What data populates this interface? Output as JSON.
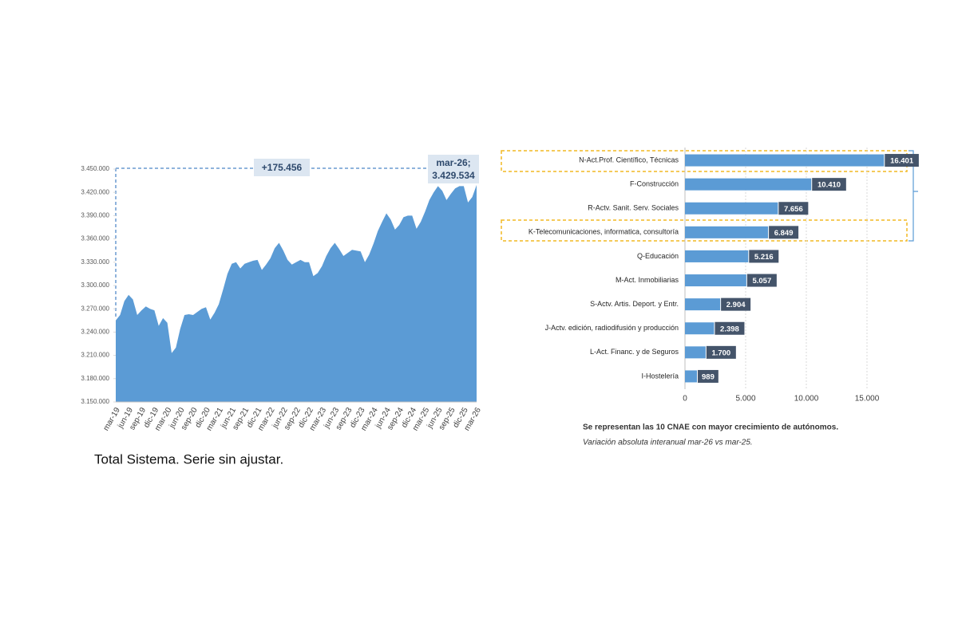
{
  "chart_data": [
    {
      "type": "area",
      "caption": "Total Sistema. Serie sin ajustar.",
      "annotations": [
        "+175.456",
        "mar-26; 3.429.534"
      ],
      "color": "#5b9bd5",
      "categories": [
        "mar-19",
        null,
        null,
        "jun-19",
        null,
        null,
        "sep-19",
        null,
        null,
        "dic-19",
        null,
        null,
        "mar-20",
        null,
        null,
        "jun-20",
        null,
        null,
        "sep-20",
        null,
        null,
        "dic-20",
        null,
        null,
        "mar-21",
        null,
        null,
        "jun-21",
        null,
        null,
        "sep-21",
        null,
        null,
        "dic-21",
        null,
        null,
        "mar-22",
        null,
        null,
        "jun-22",
        null,
        null,
        "sep-22",
        null,
        null,
        "dic-22",
        null,
        null,
        "mar-23",
        null,
        null,
        "jun-23",
        null,
        null,
        "sep-23",
        null,
        null,
        "dic-23",
        null,
        null,
        "mar-24",
        null,
        null,
        "jun-24",
        null,
        null,
        "sep-24",
        null,
        null,
        "dic-24",
        null,
        null,
        "mar-25",
        null,
        null,
        "jun-25",
        null,
        null,
        "sep-25",
        null,
        null,
        "dic-25",
        null,
        null,
        "mar-26"
      ],
      "values": [
        3255000,
        3262000,
        3280000,
        3288000,
        3282000,
        3262000,
        3268000,
        3273000,
        3270000,
        3268000,
        3248000,
        3258000,
        3252000,
        3213000,
        3220000,
        3244000,
        3262000,
        3263000,
        3262000,
        3266000,
        3270000,
        3272000,
        3256000,
        3265000,
        3276000,
        3295000,
        3315000,
        3328000,
        3330000,
        3322000,
        3328000,
        3330000,
        3332000,
        3333000,
        3320000,
        3327000,
        3335000,
        3348000,
        3355000,
        3345000,
        3333000,
        3327000,
        3330000,
        3333000,
        3330000,
        3330000,
        3312000,
        3316000,
        3325000,
        3338000,
        3348000,
        3355000,
        3347000,
        3338000,
        3342000,
        3346000,
        3345000,
        3344000,
        3330000,
        3340000,
        3354000,
        3370000,
        3382000,
        3393000,
        3385000,
        3372000,
        3378000,
        3388000,
        3390000,
        3390000,
        3373000,
        3382000,
        3395000,
        3410000,
        3420000,
        3428000,
        3422000,
        3410000,
        3418000,
        3425000,
        3428000,
        3428000,
        3407000,
        3414000,
        3429534
      ],
      "ylim": [
        3150000,
        3450000
      ],
      "yticks": [
        {
          "value": 3150000,
          "label": "3.150.000"
        },
        {
          "value": 3180000,
          "label": "3.180.000"
        },
        {
          "value": 3210000,
          "label": "3.210.000"
        },
        {
          "value": 3240000,
          "label": "3.240.000"
        },
        {
          "value": 3270000,
          "label": "3.270.000"
        },
        {
          "value": 3300000,
          "label": "3.300.000"
        },
        {
          "value": 3330000,
          "label": "3.330.000"
        },
        {
          "value": 3360000,
          "label": "3.360.000"
        },
        {
          "value": 3390000,
          "label": "3.390.000"
        },
        {
          "value": 3420000,
          "label": "3.420.000"
        },
        {
          "value": 3450000,
          "label": "3.450.000"
        }
      ]
    },
    {
      "type": "hbar",
      "notes": [
        "Se representan las 10 CNAE con mayor crecimiento de autónomos.",
        "Variación absoluta interanual mar-26 vs mar-25."
      ],
      "color": "#5b9bd5",
      "categories": [
        "N-Act.Prof. Científico, Técnicas",
        "F-Construcción",
        "R-Actv. Sanit. Serv. Sociales",
        "K-Telecomunicaciones, informatica, consultoría",
        "Q-Educación",
        "M-Act. Inmobiliarias",
        "S-Actv. Artis. Deport. y Entr.",
        "J-Actv. edición, radiodifusión y producción",
        "L-Act. Financ. y de Seguros",
        "I-Hostelería"
      ],
      "values": [
        16401,
        10410,
        7656,
        6849,
        5216,
        5057,
        2904,
        2398,
        1700,
        989
      ],
      "value_labels": [
        "16.401",
        "10.410",
        "7.656",
        "6.849",
        "5.216",
        "5.057",
        "2.904",
        "2.398",
        "1.700",
        "989"
      ],
      "xlim": [
        0,
        18000
      ],
      "xticks": [
        0,
        {
          "value": 5000,
          "label": "5.000"
        },
        {
          "value": 10000,
          "label": "10.000"
        },
        {
          "value": 15000,
          "label": "15.000"
        }
      ],
      "grid": true
    }
  ]
}
